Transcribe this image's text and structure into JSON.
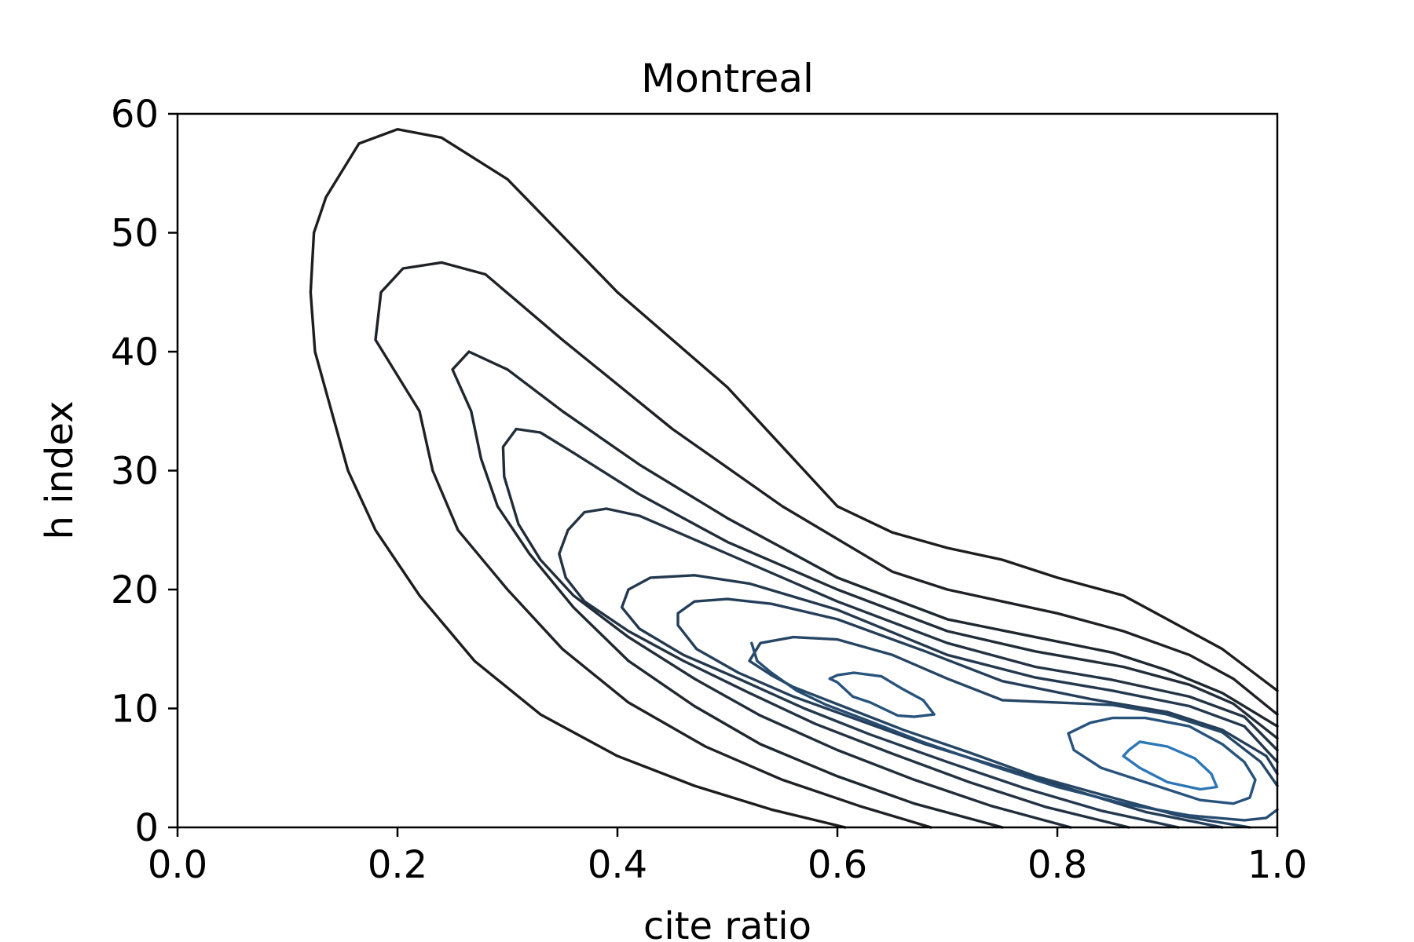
{
  "chart_data": {
    "type": "contour",
    "title": "Montreal",
    "xlabel": "cite ratio",
    "ylabel": "h index",
    "xlim": [
      0.0,
      1.0
    ],
    "ylim": [
      0,
      60
    ],
    "x_ticks": [
      0.0,
      0.2,
      0.4,
      0.6,
      0.8,
      1.0
    ],
    "x_tick_labels": [
      "0.0",
      "0.2",
      "0.4",
      "0.6",
      "0.8",
      "1.0"
    ],
    "y_ticks": [
      0,
      10,
      20,
      30,
      40,
      50,
      60
    ],
    "y_tick_labels": [
      "0",
      "10",
      "20",
      "30",
      "40",
      "50",
      "60"
    ],
    "grid": false,
    "colormap": {
      "low": "#1a1a1a",
      "high": "#2c77b5"
    },
    "contours": [
      {
        "level": 1,
        "color": "#1d1d1f",
        "points": [
          [
            0.607,
            0
          ],
          [
            0.54,
            1.5
          ],
          [
            0.47,
            3.5
          ],
          [
            0.4,
            6.0
          ],
          [
            0.33,
            9.5
          ],
          [
            0.27,
            14.0
          ],
          [
            0.22,
            19.5
          ],
          [
            0.18,
            25.0
          ],
          [
            0.155,
            30.0
          ],
          [
            0.143,
            34.0
          ],
          [
            0.125,
            40.0
          ],
          [
            0.121,
            45.0
          ],
          [
            0.124,
            50.0
          ],
          [
            0.135,
            53.0
          ],
          [
            0.165,
            57.5
          ],
          [
            0.2,
            58.7
          ],
          [
            0.24,
            58.0
          ],
          [
            0.3,
            54.5
          ],
          [
            0.4,
            45.0
          ],
          [
            0.5,
            37.0
          ],
          [
            0.55,
            32.0
          ],
          [
            0.6,
            27.0
          ],
          [
            0.65,
            24.8
          ],
          [
            0.7,
            23.5
          ],
          [
            0.75,
            22.5
          ],
          [
            0.8,
            21.0
          ],
          [
            0.86,
            19.5
          ],
          [
            0.9,
            17.5
          ],
          [
            0.95,
            15.0
          ],
          [
            1.0,
            11.5
          ]
        ]
      },
      {
        "level": 2,
        "color": "#1e2226",
        "points": [
          [
            0.685,
            0
          ],
          [
            0.62,
            1.8
          ],
          [
            0.55,
            4.0
          ],
          [
            0.48,
            6.8
          ],
          [
            0.41,
            10.5
          ],
          [
            0.35,
            15.0
          ],
          [
            0.3,
            20.0
          ],
          [
            0.255,
            25.0
          ],
          [
            0.232,
            30.0
          ],
          [
            0.22,
            35.0
          ],
          [
            0.18,
            41.0
          ],
          [
            0.185,
            45.0
          ],
          [
            0.205,
            47.0
          ],
          [
            0.24,
            47.5
          ],
          [
            0.28,
            46.5
          ],
          [
            0.35,
            41.0
          ],
          [
            0.45,
            33.5
          ],
          [
            0.55,
            27.0
          ],
          [
            0.65,
            21.5
          ],
          [
            0.7,
            20.0
          ],
          [
            0.75,
            19.0
          ],
          [
            0.8,
            18.0
          ],
          [
            0.86,
            16.5
          ],
          [
            0.92,
            14.5
          ],
          [
            0.96,
            12.5
          ],
          [
            1.0,
            9.5
          ]
        ]
      },
      {
        "level": 3,
        "color": "#1f272f",
        "points": [
          [
            0.75,
            0
          ],
          [
            0.67,
            2.0
          ],
          [
            0.6,
            4.3
          ],
          [
            0.53,
            7.0
          ],
          [
            0.47,
            10.2
          ],
          [
            0.41,
            14.0
          ],
          [
            0.36,
            18.5
          ],
          [
            0.32,
            23.0
          ],
          [
            0.291,
            27.0
          ],
          [
            0.276,
            31.0
          ],
          [
            0.267,
            35.0
          ],
          [
            0.25,
            38.5
          ],
          [
            0.265,
            40.0
          ],
          [
            0.3,
            38.5
          ],
          [
            0.35,
            35.0
          ],
          [
            0.42,
            30.5
          ],
          [
            0.5,
            26.0
          ],
          [
            0.6,
            21.0
          ],
          [
            0.7,
            17.5
          ],
          [
            0.78,
            16.0
          ],
          [
            0.85,
            14.7
          ],
          [
            0.9,
            13.2
          ],
          [
            0.95,
            11.3
          ],
          [
            1.0,
            8.5
          ]
        ]
      },
      {
        "level": 4,
        "color": "#212d39",
        "points": [
          [
            0.812,
            0
          ],
          [
            0.74,
            1.8
          ],
          [
            0.67,
            4.0
          ],
          [
            0.6,
            6.5
          ],
          [
            0.53,
            9.4
          ],
          [
            0.47,
            12.5
          ],
          [
            0.41,
            16.0
          ],
          [
            0.36,
            19.5
          ],
          [
            0.33,
            22.5
          ],
          [
            0.31,
            25.5
          ],
          [
            0.297,
            29.5
          ],
          [
            0.296,
            32.0
          ],
          [
            0.308,
            33.5
          ],
          [
            0.33,
            33.2
          ],
          [
            0.36,
            31.5
          ],
          [
            0.42,
            28.0
          ],
          [
            0.5,
            24.0
          ],
          [
            0.6,
            20.0
          ],
          [
            0.7,
            16.5
          ],
          [
            0.78,
            14.8
          ],
          [
            0.86,
            13.5
          ],
          [
            0.92,
            12.0
          ],
          [
            0.96,
            10.4
          ],
          [
            1.0,
            7.5
          ]
        ]
      },
      {
        "level": 5,
        "color": "#233343",
        "points": [
          [
            0.865,
            0
          ],
          [
            0.79,
            1.7
          ],
          [
            0.72,
            3.8
          ],
          [
            0.65,
            6.2
          ],
          [
            0.58,
            8.7
          ],
          [
            0.52,
            11.3
          ],
          [
            0.46,
            14.0
          ],
          [
            0.41,
            16.5
          ],
          [
            0.37,
            19.0
          ],
          [
            0.353,
            21.0
          ],
          [
            0.347,
            23.0
          ],
          [
            0.355,
            25.0
          ],
          [
            0.37,
            26.5
          ],
          [
            0.39,
            26.8
          ],
          [
            0.42,
            26.2
          ],
          [
            0.5,
            23.0
          ],
          [
            0.6,
            19.0
          ],
          [
            0.7,
            15.5
          ],
          [
            0.78,
            13.5
          ],
          [
            0.85,
            12.4
          ],
          [
            0.92,
            11.0
          ],
          [
            0.97,
            9.3
          ],
          [
            1.0,
            6.5
          ]
        ]
      },
      {
        "level": 6,
        "color": "#24394e",
        "points": [
          [
            0.91,
            0
          ],
          [
            0.84,
            1.4
          ],
          [
            0.77,
            3.3
          ],
          [
            0.7,
            5.5
          ],
          [
            0.63,
            7.8
          ],
          [
            0.57,
            10.0
          ],
          [
            0.51,
            12.5
          ],
          [
            0.46,
            14.5
          ],
          [
            0.42,
            16.7
          ],
          [
            0.404,
            18.5
          ],
          [
            0.41,
            20.0
          ],
          [
            0.43,
            21.0
          ],
          [
            0.47,
            21.2
          ],
          [
            0.52,
            20.5
          ],
          [
            0.6,
            18.3
          ],
          [
            0.7,
            14.5
          ],
          [
            0.78,
            12.6
          ],
          [
            0.85,
            11.5
          ],
          [
            0.92,
            10.2
          ],
          [
            0.97,
            8.5
          ],
          [
            1.0,
            5.5
          ]
        ]
      },
      {
        "level": 7,
        "color": "#253f5a",
        "points": [
          [
            0.95,
            0
          ],
          [
            0.88,
            1.3
          ],
          [
            0.82,
            3.0
          ],
          [
            0.75,
            5.0
          ],
          [
            0.68,
            7.0
          ],
          [
            0.62,
            9.0
          ],
          [
            0.56,
            11.0
          ],
          [
            0.51,
            13.0
          ],
          [
            0.472,
            15.0
          ],
          [
            0.455,
            17.0
          ],
          [
            0.455,
            18.0
          ],
          [
            0.47,
            19.0
          ],
          [
            0.5,
            19.2
          ],
          [
            0.54,
            18.8
          ],
          [
            0.6,
            17.5
          ],
          [
            0.68,
            14.8
          ],
          [
            0.75,
            12.3
          ],
          [
            0.83,
            10.8
          ],
          [
            0.9,
            9.7
          ],
          [
            0.95,
            8.2
          ],
          [
            0.99,
            6.0
          ],
          [
            1.0,
            4.5
          ]
        ]
      },
      {
        "level": 8,
        "color": "#264665",
        "points": [
          [
            0.975,
            0
          ],
          [
            0.91,
            1.0
          ],
          [
            0.85,
            2.5
          ],
          [
            0.78,
            4.3
          ],
          [
            0.72,
            6.3
          ],
          [
            0.66,
            8.2
          ],
          [
            0.61,
            10.0
          ],
          [
            0.56,
            11.8
          ],
          [
            0.54,
            12.8
          ],
          [
            0.52,
            14.0
          ],
          [
            0.53,
            15.5
          ],
          [
            0.56,
            16.0
          ],
          [
            0.6,
            15.8
          ],
          [
            0.65,
            14.5
          ],
          [
            0.7,
            12.5
          ],
          [
            0.75,
            10.7
          ],
          [
            0.8,
            10.5
          ],
          [
            0.85,
            10.3
          ],
          [
            0.9,
            9.5
          ],
          [
            0.95,
            8.0
          ],
          [
            0.985,
            5.5
          ],
          [
            1.0,
            3.5
          ]
        ]
      },
      {
        "level": 9,
        "color": "#274c71",
        "points": [
          [
            1.0,
            1.5
          ],
          [
            0.99,
            0.8
          ],
          [
            0.97,
            0.6
          ],
          [
            0.92,
            1.0
          ],
          [
            0.86,
            2.0
          ],
          [
            0.8,
            3.4
          ],
          [
            0.74,
            5.2
          ],
          [
            0.68,
            7.1
          ],
          [
            0.63,
            8.9
          ],
          [
            0.59,
            10.3
          ],
          [
            0.563,
            11.5
          ],
          [
            0.54,
            13.0
          ],
          [
            0.527,
            14.0
          ],
          [
            0.522,
            15.5
          ]
        ]
      },
      {
        "level": 10,
        "color": "#28537d",
        "points": [
          [
            0.6,
            12.8
          ],
          [
            0.615,
            13.0
          ],
          [
            0.64,
            12.7
          ],
          [
            0.66,
            11.6
          ],
          [
            0.678,
            10.7
          ],
          [
            0.688,
            9.5
          ],
          [
            0.67,
            9.3
          ],
          [
            0.655,
            9.4
          ],
          [
            0.63,
            10.5
          ],
          [
            0.614,
            11.0
          ],
          [
            0.6,
            12.2
          ],
          [
            0.593,
            12.5
          ],
          [
            0.6,
            12.8
          ]
        ]
      },
      {
        "level": 10,
        "color": "#28537d",
        "points": [
          [
            0.81,
            7.9
          ],
          [
            0.83,
            8.8
          ],
          [
            0.85,
            9.2
          ],
          [
            0.88,
            9.2
          ],
          [
            0.92,
            8.5
          ],
          [
            0.95,
            7.0
          ],
          [
            0.97,
            5.5
          ],
          [
            0.98,
            4.0
          ],
          [
            0.975,
            2.5
          ],
          [
            0.96,
            2.0
          ],
          [
            0.93,
            2.3
          ],
          [
            0.89,
            3.5
          ],
          [
            0.84,
            5.0
          ],
          [
            0.815,
            6.5
          ],
          [
            0.81,
            7.9
          ]
        ]
      },
      {
        "level": 11,
        "color": "#2c77b5",
        "points": [
          [
            0.865,
            6.5
          ],
          [
            0.875,
            7.2
          ],
          [
            0.9,
            6.8
          ],
          [
            0.925,
            5.8
          ],
          [
            0.94,
            4.5
          ],
          [
            0.945,
            3.4
          ],
          [
            0.93,
            3.2
          ],
          [
            0.9,
            3.8
          ],
          [
            0.875,
            5.0
          ],
          [
            0.86,
            6.0
          ],
          [
            0.865,
            6.5
          ]
        ]
      }
    ]
  }
}
